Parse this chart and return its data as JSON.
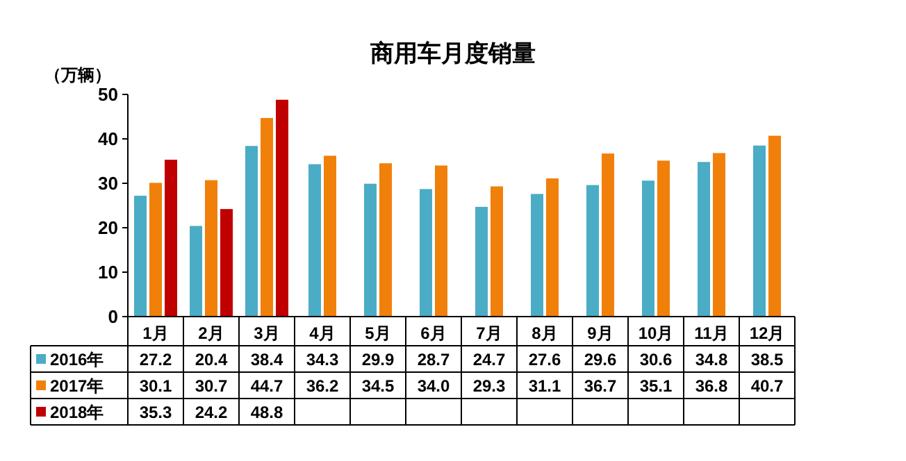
{
  "chart_data": {
    "type": "bar",
    "title": "商用车月度销量",
    "ylabel": "（万辆）",
    "categories": [
      "1月",
      "2月",
      "3月",
      "4月",
      "5月",
      "6月",
      "7月",
      "8月",
      "9月",
      "10月",
      "11月",
      "12月"
    ],
    "series": [
      {
        "name": "2016年",
        "color": "#4bacc6",
        "values": [
          27.2,
          20.4,
          38.4,
          34.3,
          29.9,
          28.7,
          24.7,
          27.6,
          29.6,
          30.6,
          34.8,
          38.5
        ],
        "value_labels": [
          "27.2",
          "20.4",
          "38.4",
          "34.3",
          "29.9",
          "28.7",
          "24.7",
          "27.6",
          "29.6",
          "30.6",
          "34.8",
          "38.5"
        ]
      },
      {
        "name": "2017年",
        "color": "#f0800a",
        "values": [
          30.1,
          30.7,
          44.7,
          36.2,
          34.5,
          34.0,
          29.3,
          31.1,
          36.7,
          35.1,
          36.8,
          40.7
        ],
        "value_labels": [
          "30.1",
          "30.7",
          "44.7",
          "36.2",
          "34.5",
          "34.0",
          "29.3",
          "31.1",
          "36.7",
          "35.1",
          "36.8",
          "40.7"
        ]
      },
      {
        "name": "2018年",
        "color": "#c00000",
        "values": [
          35.3,
          24.2,
          48.8,
          null,
          null,
          null,
          null,
          null,
          null,
          null,
          null,
          null
        ],
        "value_labels": [
          "35.3",
          "24.2",
          "48.8",
          null,
          null,
          null,
          null,
          null,
          null,
          null,
          null,
          null
        ]
      }
    ],
    "ylim": [
      0,
      50
    ],
    "yticks": [
      0,
      10,
      20,
      30,
      40,
      50
    ],
    "legend": "bottom",
    "grid": false
  }
}
